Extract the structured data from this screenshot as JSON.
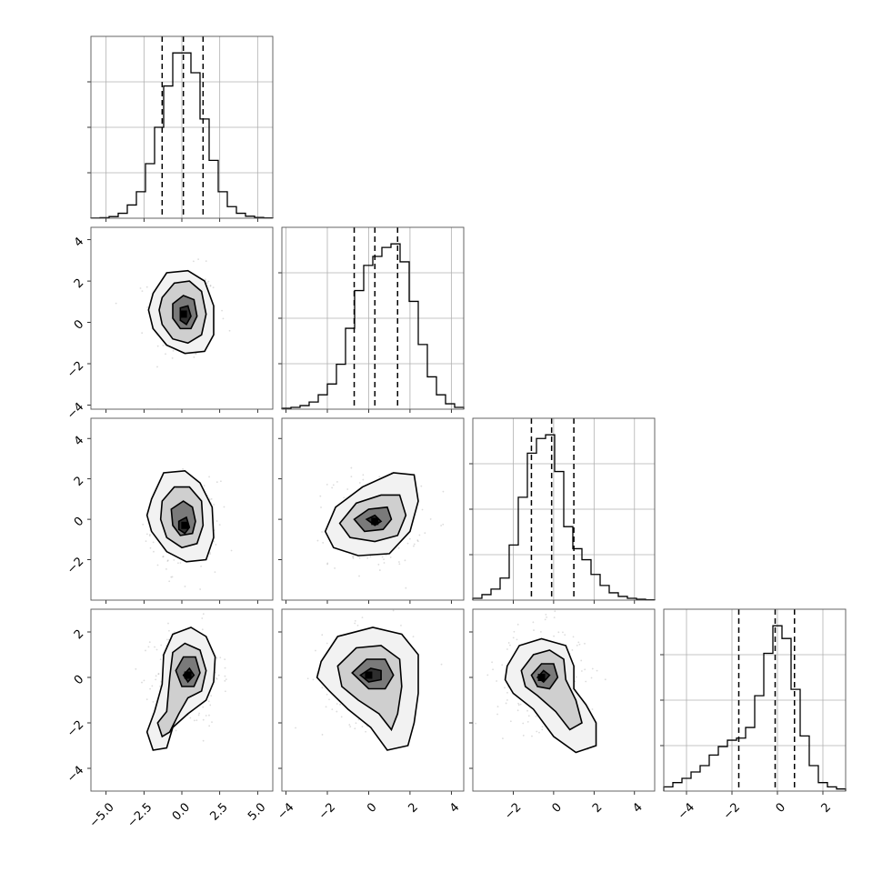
{
  "chart_data": {
    "type": "corner",
    "parameters": 4,
    "grid": true,
    "quantile_lines": "dashed",
    "columns": [
      {
        "range": [
          -6.0,
          6.0
        ],
        "ticks": [
          -5.0,
          -2.5,
          0.0,
          2.5,
          5.0
        ],
        "tick_labels": [
          "−5.0",
          "−2.5",
          "0.0",
          "2.5",
          "5.0"
        ]
      },
      {
        "range": [
          -4.2,
          4.6
        ],
        "ticks": [
          -4,
          -2,
          0,
          2,
          4
        ],
        "tick_labels": [
          "−4",
          "−2",
          "0",
          "2",
          "4"
        ]
      },
      {
        "range": [
          -4.0,
          5.0
        ],
        "ticks": [
          -2,
          0,
          2,
          4
        ],
        "tick_labels": [
          "−2",
          "0",
          "2",
          "4"
        ]
      },
      {
        "range": [
          -5.0,
          3.0
        ],
        "ticks": [
          -4,
          -2,
          0,
          2
        ],
        "tick_labels": [
          "−4",
          "−2",
          "0",
          "2"
        ]
      }
    ],
    "rows": [
      null,
      {
        "range": [
          -4.2,
          4.6
        ],
        "ticks": [
          -4,
          -2,
          0,
          2,
          4
        ],
        "tick_labels": [
          "−4",
          "−2",
          "0",
          "2",
          "4"
        ]
      },
      {
        "range": [
          -4.0,
          5.0
        ],
        "ticks": [
          -2,
          0,
          2,
          4
        ],
        "tick_labels": [
          "−2",
          "0",
          "2",
          "4"
        ]
      },
      {
        "range": [
          -5.0,
          3.0
        ],
        "ticks": [
          -4,
          -2,
          0,
          2
        ],
        "tick_labels": [
          "−4",
          "−2",
          "0",
          "2"
        ]
      }
    ],
    "diagonal": [
      {
        "edges_start": -6.0,
        "bin_width": 0.6,
        "counts": [
          0.1,
          0.3,
          1,
          3,
          8,
          16,
          33,
          55,
          80,
          100,
          100,
          88,
          60,
          35,
          16,
          7,
          3,
          1.2,
          0.5,
          0.2
        ],
        "quantiles": [
          -1.3,
          0.1,
          1.4
        ]
      },
      {
        "edges_start": -4.2,
        "bin_width": 0.44,
        "counts": [
          0.5,
          1,
          2,
          4,
          8,
          14,
          25,
          45,
          66,
          80,
          85,
          90,
          92,
          82,
          60,
          36,
          18,
          8,
          3,
          1
        ],
        "quantiles": [
          -0.7,
          0.3,
          1.4
        ]
      },
      {
        "edges_start": -4.0,
        "bin_width": 0.45,
        "counts": [
          1,
          3,
          6,
          12,
          30,
          56,
          80,
          88,
          90,
          70,
          40,
          28,
          22,
          14,
          8,
          4,
          2,
          1,
          0.5,
          0.2
        ],
        "quantiles": [
          -1.1,
          -0.1,
          1.0
        ]
      },
      {
        "edges_start": -5.0,
        "bin_width": 0.4,
        "counts": [
          2,
          4,
          6,
          9,
          12,
          17,
          21,
          24,
          25,
          30,
          45,
          65,
          78,
          72,
          48,
          26,
          12,
          4,
          2,
          1
        ],
        "quantiles": [
          -1.7,
          -0.1,
          0.75
        ]
      }
    ],
    "pairs": [
      {
        "row": 1,
        "col": 0,
        "density_peak": [
          0.1,
          0.4
        ],
        "contours": [
          [
            [
              -1.9,
              1.4
            ],
            [
              -1.0,
              2.4
            ],
            [
              0.4,
              2.5
            ],
            [
              1.5,
              2.0
            ],
            [
              2.1,
              0.8
            ],
            [
              2.1,
              -0.6
            ],
            [
              1.5,
              -1.4
            ],
            [
              0.2,
              -1.5
            ],
            [
              -1.0,
              -1.1
            ],
            [
              -1.9,
              -0.3
            ],
            [
              -2.2,
              0.6
            ]
          ],
          [
            [
              -1.3,
              1.2
            ],
            [
              -0.5,
              1.9
            ],
            [
              0.5,
              2.0
            ],
            [
              1.3,
              1.5
            ],
            [
              1.6,
              0.4
            ],
            [
              1.3,
              -0.6
            ],
            [
              0.4,
              -1.0
            ],
            [
              -0.6,
              -0.8
            ],
            [
              -1.3,
              -0.1
            ],
            [
              -1.5,
              0.6
            ]
          ],
          [
            [
              -0.6,
              0.9
            ],
            [
              0.1,
              1.3
            ],
            [
              0.8,
              1.1
            ],
            [
              1.0,
              0.3
            ],
            [
              0.6,
              -0.3
            ],
            [
              -0.1,
              -0.3
            ],
            [
              -0.6,
              0.2
            ]
          ],
          [
            [
              -0.1,
              0.7
            ],
            [
              0.4,
              0.8
            ],
            [
              0.6,
              0.3
            ],
            [
              0.3,
              -0.1
            ],
            [
              -0.1,
              0.1
            ]
          ]
        ]
      },
      {
        "row": 2,
        "col": 0,
        "density_peak": [
          0.2,
          -0.3
        ],
        "contours": [
          [
            [
              -2.0,
              1.0
            ],
            [
              -1.2,
              2.3
            ],
            [
              0.2,
              2.4
            ],
            [
              1.2,
              1.8
            ],
            [
              2.0,
              0.6
            ],
            [
              2.1,
              -0.9
            ],
            [
              1.6,
              -2.0
            ],
            [
              0.3,
              -2.1
            ],
            [
              -1.0,
              -1.6
            ],
            [
              -2.0,
              -0.6
            ],
            [
              -2.3,
              0.2
            ]
          ],
          [
            [
              -1.3,
              0.9
            ],
            [
              -0.5,
              1.6
            ],
            [
              0.5,
              1.6
            ],
            [
              1.3,
              0.9
            ],
            [
              1.4,
              -0.3
            ],
            [
              1.0,
              -1.2
            ],
            [
              0.0,
              -1.4
            ],
            [
              -1.0,
              -0.9
            ],
            [
              -1.4,
              0.0
            ]
          ],
          [
            [
              -0.7,
              0.5
            ],
            [
              0.1,
              0.9
            ],
            [
              0.7,
              0.6
            ],
            [
              0.9,
              -0.1
            ],
            [
              0.7,
              -0.7
            ],
            [
              -0.1,
              -0.8
            ],
            [
              -0.6,
              -0.3
            ]
          ],
          [
            [
              -0.2,
              -0.1
            ],
            [
              0.3,
              0.1
            ],
            [
              0.5,
              -0.4
            ],
            [
              0.2,
              -0.7
            ],
            [
              -0.2,
              -0.5
            ]
          ]
        ]
      },
      {
        "row": 2,
        "col": 1,
        "density_peak": [
          0.3,
          -0.1
        ],
        "contours": [
          [
            [
              -2.1,
              -0.6
            ],
            [
              -1.6,
              0.6
            ],
            [
              -0.3,
              1.6
            ],
            [
              1.2,
              2.3
            ],
            [
              2.2,
              2.2
            ],
            [
              2.4,
              0.9
            ],
            [
              2.0,
              -0.6
            ],
            [
              1.0,
              -1.7
            ],
            [
              -0.5,
              -1.8
            ],
            [
              -1.7,
              -1.4
            ]
          ],
          [
            [
              -1.4,
              -0.2
            ],
            [
              -0.6,
              0.8
            ],
            [
              0.6,
              1.2
            ],
            [
              1.5,
              1.2
            ],
            [
              1.8,
              0.2
            ],
            [
              1.4,
              -0.8
            ],
            [
              0.3,
              -1.1
            ],
            [
              -0.9,
              -0.9
            ]
          ],
          [
            [
              -0.7,
              0.0
            ],
            [
              0.0,
              0.5
            ],
            [
              0.9,
              0.6
            ],
            [
              1.1,
              0.0
            ],
            [
              0.7,
              -0.5
            ],
            [
              -0.2,
              -0.6
            ]
          ],
          [
            [
              -0.1,
              0.0
            ],
            [
              0.3,
              0.2
            ],
            [
              0.6,
              -0.1
            ],
            [
              0.3,
              -0.3
            ]
          ]
        ]
      },
      {
        "row": 3,
        "col": 0,
        "density_peak": [
          0.4,
          0.1
        ],
        "contours": [
          [
            [
              -1.8,
              -1.5
            ],
            [
              -1.3,
              -0.3
            ],
            [
              -1.2,
              1.0
            ],
            [
              -0.6,
              1.9
            ],
            [
              0.6,
              2.2
            ],
            [
              1.6,
              1.8
            ],
            [
              2.2,
              0.9
            ],
            [
              2.1,
              -0.2
            ],
            [
              1.6,
              -1.0
            ],
            [
              0.4,
              -1.6
            ],
            [
              -0.6,
              -2.2
            ],
            [
              -1.0,
              -3.1
            ],
            [
              -1.9,
              -3.2
            ],
            [
              -2.3,
              -2.4
            ]
          ],
          [
            [
              -1.0,
              -1.5
            ],
            [
              -0.8,
              0.0
            ],
            [
              -0.6,
              1.1
            ],
            [
              0.2,
              1.5
            ],
            [
              1.2,
              1.2
            ],
            [
              1.6,
              0.3
            ],
            [
              1.3,
              -0.6
            ],
            [
              0.4,
              -0.9
            ],
            [
              -0.2,
              -1.6
            ],
            [
              -0.8,
              -2.4
            ],
            [
              -1.3,
              -2.6
            ],
            [
              -1.6,
              -2.0
            ]
          ],
          [
            [
              -0.4,
              0.3
            ],
            [
              0.1,
              0.9
            ],
            [
              0.9,
              0.9
            ],
            [
              1.2,
              0.2
            ],
            [
              0.8,
              -0.4
            ],
            [
              0.0,
              -0.4
            ]
          ],
          [
            [
              0.1,
              0.1
            ],
            [
              0.5,
              0.4
            ],
            [
              0.8,
              0.1
            ],
            [
              0.4,
              -0.2
            ]
          ]
        ]
      },
      {
        "row": 3,
        "col": 1,
        "density_peak": [
          0.0,
          0.1
        ],
        "contours": [
          [
            [
              -2.3,
              0.7
            ],
            [
              -1.5,
              1.8
            ],
            [
              0.2,
              2.2
            ],
            [
              1.6,
              1.9
            ],
            [
              2.4,
              1.0
            ],
            [
              2.4,
              -0.7
            ],
            [
              2.2,
              -2.0
            ],
            [
              1.9,
              -3.0
            ],
            [
              0.9,
              -3.2
            ],
            [
              0.1,
              -2.2
            ],
            [
              -1.0,
              -1.4
            ],
            [
              -1.9,
              -0.6
            ],
            [
              -2.5,
              0.0
            ]
          ],
          [
            [
              -1.5,
              0.5
            ],
            [
              -0.6,
              1.3
            ],
            [
              0.6,
              1.4
            ],
            [
              1.5,
              0.8
            ],
            [
              1.6,
              -0.4
            ],
            [
              1.4,
              -1.6
            ],
            [
              1.1,
              -2.3
            ],
            [
              0.5,
              -1.6
            ],
            [
              -0.5,
              -1.0
            ],
            [
              -1.3,
              -0.4
            ]
          ],
          [
            [
              -0.8,
              0.2
            ],
            [
              -0.1,
              0.8
            ],
            [
              0.8,
              0.8
            ],
            [
              1.2,
              0.1
            ],
            [
              0.8,
              -0.5
            ],
            [
              0.0,
              -0.5
            ]
          ],
          [
            [
              -0.4,
              0.1
            ],
            [
              0.1,
              0.4
            ],
            [
              0.6,
              0.3
            ],
            [
              0.6,
              -0.1
            ],
            [
              0.0,
              -0.2
            ]
          ]
        ]
      },
      {
        "row": 3,
        "col": 2,
        "density_peak": [
          -0.6,
          0.0
        ],
        "contours": [
          [
            [
              -2.3,
              0.5
            ],
            [
              -1.7,
              1.4
            ],
            [
              -0.6,
              1.7
            ],
            [
              0.6,
              1.4
            ],
            [
              1.0,
              0.5
            ],
            [
              1.0,
              -0.5
            ],
            [
              1.6,
              -1.2
            ],
            [
              2.1,
              -2.0
            ],
            [
              2.1,
              -3.0
            ],
            [
              1.1,
              -3.3
            ],
            [
              0.0,
              -2.6
            ],
            [
              -1.0,
              -1.4
            ],
            [
              -2.0,
              -0.7
            ],
            [
              -2.4,
              -0.1
            ]
          ],
          [
            [
              -1.6,
              0.3
            ],
            [
              -1.0,
              1.0
            ],
            [
              -0.2,
              1.2
            ],
            [
              0.5,
              0.8
            ],
            [
              0.6,
              -0.1
            ],
            [
              1.1,
              -1.0
            ],
            [
              1.4,
              -2.0
            ],
            [
              0.8,
              -2.3
            ],
            [
              0.1,
              -1.5
            ],
            [
              -0.8,
              -0.8
            ],
            [
              -1.4,
              -0.4
            ]
          ],
          [
            [
              -1.1,
              0.1
            ],
            [
              -0.6,
              0.6
            ],
            [
              0.0,
              0.6
            ],
            [
              0.2,
              0.0
            ],
            [
              -0.2,
              -0.5
            ],
            [
              -0.8,
              -0.4
            ]
          ],
          [
            [
              -0.8,
              0.0
            ],
            [
              -0.5,
              0.3
            ],
            [
              -0.2,
              0.1
            ],
            [
              -0.5,
              -0.2
            ]
          ]
        ]
      }
    ]
  }
}
